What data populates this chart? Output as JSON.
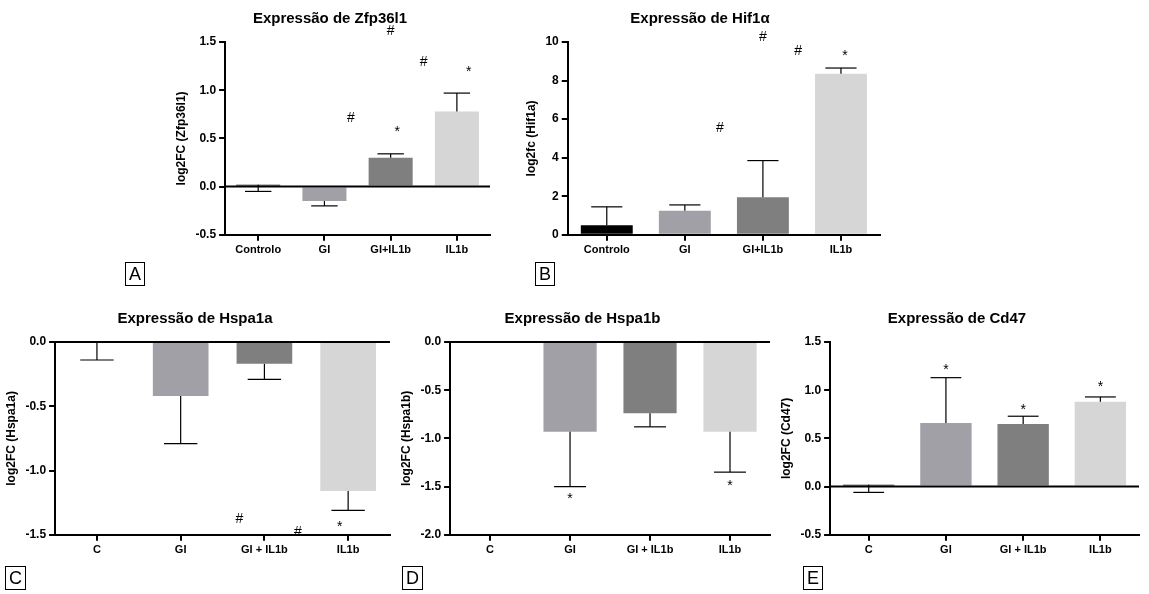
{
  "chart_data": [
    {
      "type": "bar",
      "title": "Expressão de Zfp36l1",
      "ylabel": "log2FC (Zfp36l1)",
      "categories": [
        "Controlo",
        "GI",
        "GI+IL1b",
        "IL1b"
      ],
      "values": [
        0.02,
        -0.15,
        0.3,
        0.78
      ],
      "colors": [
        "#000000",
        "#a0a0a6",
        "#7f7f7f",
        "#d6d6d6"
      ],
      "errors": [
        [
          -0.05,
          0.02
        ],
        [
          -0.2,
          -0.15
        ],
        [
          0.3,
          0.34
        ],
        [
          0.78,
          0.97
        ]
      ],
      "ylim": [
        -0.5,
        1.5
      ],
      "yticks": [
        -0.5,
        {
          "value": 0,
          "label": "0.0"
        },
        0.5,
        {
          "value": 1,
          "label": "1.0"
        },
        1.5
      ],
      "ref_lines": [
        {
          "axis": "y",
          "value": 0,
          "color": "#000000"
        }
      ],
      "annotations": [
        "#",
        "#",
        "*",
        "#",
        "*",
        "A"
      ]
    },
    {
      "type": "bar",
      "title": "Expressão de Hif1α",
      "ylabel": "log2fc (Hif1a)",
      "categories": [
        "Controlo",
        "GI",
        "GI+IL1b",
        "IL1b"
      ],
      "values": [
        0.5,
        1.25,
        1.95,
        8.35
      ],
      "colors": [
        "#000000",
        "#a0a0a6",
        "#7f7f7f",
        "#d6d6d6"
      ],
      "errors": [
        [
          0.5,
          1.45
        ],
        [
          1.25,
          1.55
        ],
        [
          1.95,
          3.85
        ],
        [
          8.35,
          8.65
        ]
      ],
      "ylim": [
        0,
        10
      ],
      "yticks": [
        0,
        2,
        4,
        6,
        8,
        10
      ],
      "annotations": [
        "#",
        "#",
        "*",
        "#",
        "B"
      ]
    },
    {
      "type": "bar",
      "title": "Expressão de Hspa1a",
      "ylabel": "log2FC (Hspa1a)",
      "categories": [
        "C",
        "GI",
        "GI + IL1b",
        "IL1b"
      ],
      "values": [
        0,
        -0.42,
        -0.17,
        -1.16
      ],
      "colors": [
        "#000000",
        "#a0a0a6",
        "#7f7f7f",
        "#d6d6d6"
      ],
      "errors": [
        [
          -0.14,
          0
        ],
        [
          -0.79,
          -0.42
        ],
        [
          -0.29,
          -0.17
        ],
        [
          -1.31,
          -1.16
        ]
      ],
      "ylim": [
        -1.5,
        0
      ],
      "yticks": [
        {
          "value": 0,
          "label": "0.0"
        },
        -0.5,
        {
          "value": -1,
          "label": "-1.0"
        },
        -1.5
      ],
      "ref_lines": [
        {
          "axis": "y",
          "value": 0,
          "color": "#000000"
        }
      ],
      "annotations": [
        "#",
        "#",
        "*",
        "C"
      ]
    },
    {
      "type": "bar",
      "title": "Expressão de Hspa1b",
      "ylabel": "log2FC (Hspa1b)",
      "categories": [
        "C",
        "GI",
        "GI + IL1b",
        "IL1b"
      ],
      "values": [
        -0.01,
        -0.93,
        -0.74,
        -0.93
      ],
      "colors": [
        "#000000",
        "#a0a0a6",
        "#7f7f7f",
        "#d6d6d6"
      ],
      "errors": [
        null,
        [
          -1.5,
          -0.93
        ],
        [
          -0.88,
          -0.74
        ],
        [
          -1.35,
          -0.93
        ]
      ],
      "ylim": [
        -2,
        0
      ],
      "yticks": [
        {
          "value": 0,
          "label": "0.0"
        },
        -0.5,
        {
          "value": -1,
          "label": "-1.0"
        },
        -1.5,
        {
          "value": -2,
          "label": "-2.0"
        }
      ],
      "ref_lines": [
        {
          "axis": "y",
          "value": 0,
          "color": "#000000"
        }
      ],
      "annotations": [
        "*",
        "*",
        "D"
      ]
    },
    {
      "type": "bar",
      "title": "Expressão de Cd47",
      "ylabel": "log2FC (Cd47)",
      "categories": [
        "C",
        "GI",
        "GI + IL1b",
        "IL1b"
      ],
      "values": [
        0.02,
        0.66,
        0.65,
        0.88
      ],
      "colors": [
        "#000000",
        "#a0a0a6",
        "#7f7f7f",
        "#d6d6d6"
      ],
      "errors": [
        [
          -0.06,
          0.02
        ],
        [
          0.66,
          1.13
        ],
        [
          0.65,
          0.73
        ],
        [
          0.88,
          0.93
        ]
      ],
      "ylim": [
        -0.5,
        1.5
      ],
      "yticks": [
        -0.5,
        {
          "value": 0,
          "label": "0.0"
        },
        0.5,
        {
          "value": 1,
          "label": "1.0"
        },
        1.5
      ],
      "ref_lines": [
        {
          "axis": "y",
          "value": 0,
          "color": "#000000"
        }
      ],
      "annotations": [
        "*",
        "*",
        "*",
        "E"
      ]
    }
  ]
}
